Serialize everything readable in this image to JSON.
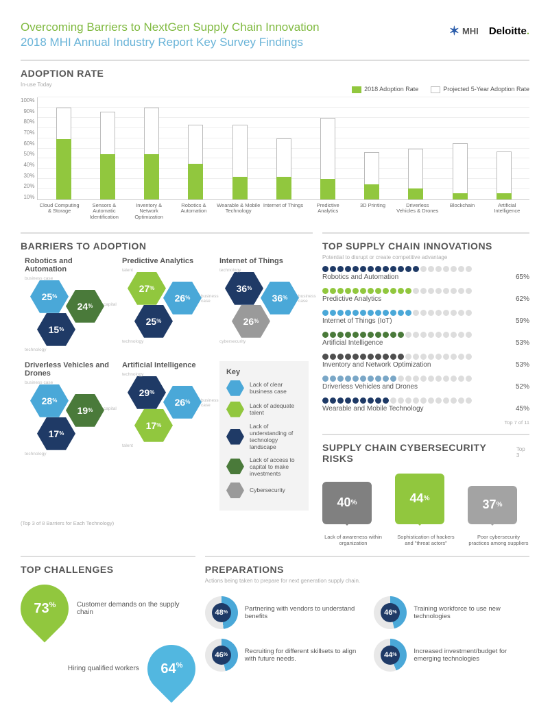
{
  "header": {
    "title": "Overcoming Barriers to NextGen Supply Chain Innovation",
    "subtitle": "2018 MHI Annual Industry Report Key Survey Findings",
    "logo_mhi": "MHI",
    "logo_deloitte": "Deloitte"
  },
  "adoption": {
    "title": "ADOPTION RATE",
    "sub": "In-use Today",
    "legend_current": "2018 Adoption Rate",
    "legend_projected": "Projected 5-Year Adoption Rate",
    "ymax": 100,
    "yticks": [
      "100%",
      "90%",
      "80%",
      "70%",
      "60%",
      "50%",
      "40%",
      "30%",
      "20%",
      "10%"
    ],
    "bar_color": "#91c73e",
    "proj_border": "#bbbbbb",
    "bars": [
      {
        "label": "Cloud Computing & Storage",
        "current": 59,
        "projected": 90
      },
      {
        "label": "Sensors & Automatic Identification",
        "current": 44,
        "projected": 86
      },
      {
        "label": "Inventory & Network Optimization",
        "current": 44,
        "projected": 90
      },
      {
        "label": "Robotics & Automation",
        "current": 35,
        "projected": 73
      },
      {
        "label": "Wearable & Mobile Technology",
        "current": 22,
        "projected": 73
      },
      {
        "label": "Internet of Things",
        "current": 22,
        "projected": 60
      },
      {
        "label": "Predictive Analytics",
        "current": 20,
        "projected": 80
      },
      {
        "label": "3D Printing",
        "current": 15,
        "projected": 46
      },
      {
        "label": "Driverless Vehicles & Drones",
        "current": 11,
        "projected": 50
      },
      {
        "label": "Blockchain",
        "current": 6,
        "projected": 55
      },
      {
        "label": "Artificial Intelligence",
        "current": 6,
        "projected": 47
      }
    ]
  },
  "barriers": {
    "title": "BARRIERS TO ADOPTION",
    "footnote": "(Top 3 of 8 Barriers for Each Technology)",
    "colors": {
      "business_case": "#4aa8d8",
      "talent": "#91c73e",
      "technology": "#1f3a66",
      "capital": "#4a7a3a",
      "cybersecurity": "#9a9a9a"
    },
    "key_title": "Key",
    "key": [
      {
        "color": "#4aa8d8",
        "label": "Lack of clear business case"
      },
      {
        "color": "#91c73e",
        "label": "Lack of adequate talent"
      },
      {
        "color": "#1f3a66",
        "label": "Lack of understanding of technology landscape"
      },
      {
        "color": "#4a7a3a",
        "label": "Lack of access to capital to make investments"
      },
      {
        "color": "#9a9a9a",
        "label": "Cybersecurity"
      }
    ],
    "items": [
      {
        "name": "Robotics and Automation",
        "hex": [
          {
            "v": "25",
            "c": "#4aa8d8",
            "pos": "tl",
            "lab": "business case"
          },
          {
            "v": "24",
            "c": "#4a7a3a",
            "pos": "tr",
            "lab": "capital"
          },
          {
            "v": "15",
            "c": "#1f3a66",
            "pos": "bl",
            "lab": "technology"
          }
        ]
      },
      {
        "name": "Predictive Analytics",
        "hex": [
          {
            "v": "27",
            "c": "#91c73e",
            "pos": "tl",
            "lab": "talent"
          },
          {
            "v": "26",
            "c": "#4aa8d8",
            "pos": "tr",
            "lab": "business case"
          },
          {
            "v": "25",
            "c": "#1f3a66",
            "pos": "bl",
            "lab": "technology"
          }
        ]
      },
      {
        "name": "Internet of Things",
        "hex": [
          {
            "v": "36",
            "c": "#1f3a66",
            "pos": "tl",
            "lab": "technology"
          },
          {
            "v": "36",
            "c": "#4aa8d8",
            "pos": "tr",
            "lab": "business case"
          },
          {
            "v": "26",
            "c": "#9a9a9a",
            "pos": "bl",
            "lab": "cybersecurity"
          }
        ]
      },
      {
        "name": "Driverless Vehicles and Drones",
        "hex": [
          {
            "v": "28",
            "c": "#4aa8d8",
            "pos": "tl",
            "lab": "business case"
          },
          {
            "v": "19",
            "c": "#4a7a3a",
            "pos": "tr",
            "lab": "capital"
          },
          {
            "v": "17",
            "c": "#1f3a66",
            "pos": "bl",
            "lab": "technology"
          }
        ]
      },
      {
        "name": "Artificial Intelligence",
        "hex": [
          {
            "v": "29",
            "c": "#1f3a66",
            "pos": "tl",
            "lab": "technology"
          },
          {
            "v": "26",
            "c": "#4aa8d8",
            "pos": "tr",
            "lab": "business case"
          },
          {
            "v": "17",
            "c": "#91c73e",
            "pos": "bl",
            "lab": "talent"
          }
        ]
      }
    ]
  },
  "innovations": {
    "title": "TOP SUPPLY CHAIN INNOVATIONS",
    "sub": "Potential to disrupt or create competitive advantage",
    "footnote": "Top 7 of 11",
    "total_dots": 20,
    "inactive_color": "#dddddd",
    "rows": [
      {
        "label": "Robotics and Automation",
        "pct": 65,
        "color": "#1f3a66"
      },
      {
        "label": "Predictive Analytics",
        "pct": 62,
        "color": "#91c73e"
      },
      {
        "label": "Internet of Things (IoT)",
        "pct": 59,
        "color": "#4aa8d8"
      },
      {
        "label": "Artificial Intelligence",
        "pct": 53,
        "color": "#4a7a3a"
      },
      {
        "label": "Inventory and Network Optimization",
        "pct": 53,
        "color": "#4f4f4f"
      },
      {
        "label": "Driverless Vehicles and Drones",
        "pct": 52,
        "color": "#7aa7c7"
      },
      {
        "label": "Wearable and Mobile Technology",
        "pct": 45,
        "color": "#1f3a66"
      }
    ]
  },
  "cyber": {
    "title": "SUPPLY CHAIN CYBERSECURITY RISKS",
    "sub": "Top 3",
    "items": [
      {
        "pct": "40",
        "label": "Lack of awareness within organization",
        "color": "#808080"
      },
      {
        "pct": "44",
        "label": "Sophistication of hackers and \"threat actors\"",
        "color": "#91c73e"
      },
      {
        "pct": "37",
        "label": "Poor cybersecurity practices among suppliers",
        "color": "#a3a3a3"
      }
    ]
  },
  "challenges": {
    "title": "TOP CHALLENGES",
    "items": [
      {
        "pct": "73",
        "label": "Customer demands on the supply chain",
        "color": "#91c73e"
      },
      {
        "pct": "64",
        "label": "Hiring qualified workers",
        "color": "#52b7e0"
      }
    ]
  },
  "preps": {
    "title": "PREPARATIONS",
    "sub": "Actions being taken to prepare for next generation supply chain.",
    "ring_color": "#4aa8d8",
    "center_color": "#1f3a66",
    "items": [
      {
        "pct": 48,
        "label": "Partnering with vendors to understand benefits"
      },
      {
        "pct": 46,
        "label": "Training workforce to use new technologies"
      },
      {
        "pct": 46,
        "label": "Recruiting for different skillsets to align with future needs."
      },
      {
        "pct": 44,
        "label": "Increased investment/budget for emerging technologies"
      }
    ]
  }
}
